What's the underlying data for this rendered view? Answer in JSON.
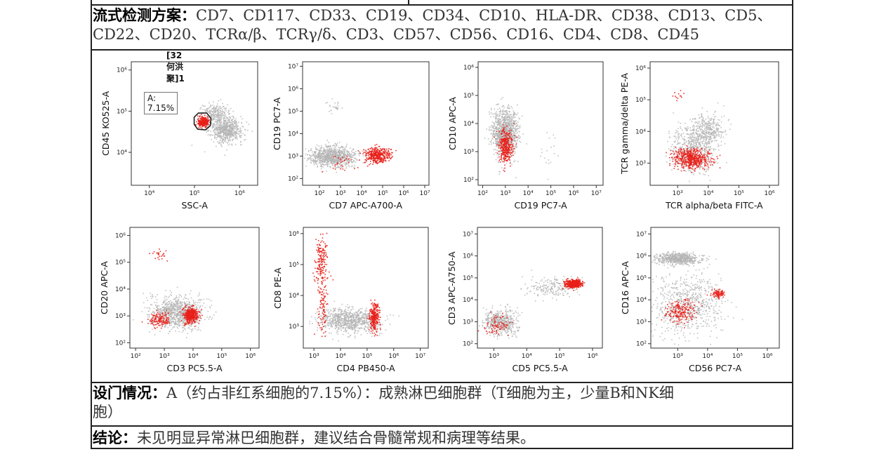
{
  "protocol": {
    "label": "流式检测方案：",
    "markers_line1": "CD7、CD117、CD33、CD19、CD34、CD10、HLA-DR、CD38、CD13、CD5、",
    "markers_line2": "CD22、CD20、TCRα/β、TCRγ/δ、CD3、CD57、CD56、CD16、CD4、CD8、CD45"
  },
  "gating": {
    "label": "设门情况：",
    "text_line1": "A（约占非红系细胞的7.15%）：成熟淋巴细胞群（T细胞为主，少量B和NK细",
    "text_line2": "胞）"
  },
  "conclusion": {
    "label": "结论：",
    "text": "未见明显异常淋巴细胞群，建议结合骨髓常规和病理等结果。"
  },
  "colors": {
    "background_events": "#b4b4b4",
    "gated_events": "#e8201a",
    "gate_outline": "#222222"
  },
  "chart_data": [
    {
      "type": "scatter",
      "title": "[32何洪聚]1",
      "xlabel": "SSC-A",
      "ylabel": "CD45 KO525-A",
      "x_ticks": [
        "10⁴",
        "10⁵",
        "10⁶"
      ],
      "y_ticks": [
        "10⁴",
        "10⁵",
        "10⁶"
      ],
      "xlim_log": [
        3.6,
        6.4
      ],
      "ylim_log": [
        3.2,
        6.2
      ],
      "gate": {
        "name": "A",
        "label": "A: 7.15%"
      },
      "populations": [
        {
          "kind": "gray",
          "x": 5.7,
          "y": 4.55,
          "sx": 0.18,
          "sy": 0.15,
          "n": 650
        },
        {
          "kind": "gray",
          "x": 5.45,
          "y": 4.95,
          "sx": 0.15,
          "sy": 0.12,
          "n": 250
        },
        {
          "kind": "red",
          "x": 5.18,
          "y": 4.75,
          "sx": 0.06,
          "sy": 0.06,
          "n": 260
        }
      ]
    },
    {
      "type": "scatter",
      "xlabel": "CD7 APC-A700-A",
      "ylabel": "CD19 PC7-A",
      "x_ticks": [
        "10²",
        "10³",
        "10⁴",
        "10⁵",
        "10⁶",
        "10⁷"
      ],
      "y_ticks": [
        "10²",
        "10³",
        "10⁴",
        "10⁵",
        "10⁶",
        "10⁷"
      ],
      "xlim_log": [
        1.2,
        7.2
      ],
      "ylim_log": [
        1.7,
        7.2
      ],
      "populations": [
        {
          "kind": "gray",
          "x": 2.6,
          "y": 3.0,
          "sx": 0.55,
          "sy": 0.22,
          "n": 900
        },
        {
          "kind": "red",
          "x": 4.7,
          "y": 3.05,
          "sx": 0.3,
          "sy": 0.18,
          "n": 380
        },
        {
          "kind": "red",
          "x": 3.0,
          "y": 2.7,
          "sx": 0.3,
          "sy": 0.2,
          "n": 30
        },
        {
          "kind": "gray",
          "x": 2.6,
          "y": 5.2,
          "sx": 0.2,
          "sy": 0.15,
          "n": 25
        }
      ]
    },
    {
      "type": "scatter",
      "xlabel": "CD19 PC7-A",
      "ylabel": "CD10 APC-A",
      "x_ticks": [
        "10²",
        "10³",
        "10⁴",
        "10⁵",
        "10⁶",
        "10⁷"
      ],
      "y_ticks": [
        "10²",
        "10³",
        "10⁴",
        "10⁵",
        "10⁶"
      ],
      "xlim_log": [
        1.8,
        7.3
      ],
      "ylim_log": [
        1.8,
        6.2
      ],
      "populations": [
        {
          "kind": "gray",
          "x": 2.95,
          "y": 3.7,
          "sx": 0.28,
          "sy": 0.42,
          "n": 1100
        },
        {
          "kind": "red",
          "x": 3.0,
          "y": 3.2,
          "sx": 0.16,
          "sy": 0.28,
          "n": 340
        },
        {
          "kind": "gray",
          "x": 5.0,
          "y": 3.1,
          "sx": 0.2,
          "sy": 0.4,
          "n": 18
        }
      ]
    },
    {
      "type": "scatter",
      "xlabel": "TCR alpha/beta FITC-A",
      "ylabel": "TCR gamma/delta PE-A",
      "x_ticks": [
        "10³",
        "10⁴",
        "10⁵",
        "10⁶"
      ],
      "y_ticks": [
        "10³",
        "10⁴",
        "10⁵",
        "10⁶"
      ],
      "xlim_log": [
        2.1,
        6.3
      ],
      "ylim_log": [
        2.3,
        6.2
      ],
      "populations": [
        {
          "kind": "gray",
          "x": 3.5,
          "y": 3.5,
          "sx": 0.35,
          "sy": 0.4,
          "n": 550
        },
        {
          "kind": "gray",
          "x": 4.0,
          "y": 4.1,
          "sx": 0.25,
          "sy": 0.25,
          "n": 300
        },
        {
          "kind": "red",
          "x": 3.45,
          "y": 3.15,
          "sx": 0.3,
          "sy": 0.15,
          "n": 520
        },
        {
          "kind": "red",
          "x": 3.0,
          "y": 5.2,
          "sx": 0.1,
          "sy": 0.1,
          "n": 12
        }
      ]
    },
    {
      "type": "scatter",
      "xlabel": "CD3 PC5.5-A",
      "ylabel": "CD20 APC-A",
      "x_ticks": [
        "10²",
        "10³",
        "10⁴",
        "10⁵",
        "10⁶"
      ],
      "y_ticks": [
        "10²",
        "10³",
        "10⁴",
        "10⁵",
        "10⁶"
      ],
      "xlim_log": [
        1.8,
        6.3
      ],
      "ylim_log": [
        1.8,
        6.3
      ],
      "populations": [
        {
          "kind": "gray",
          "x": 3.4,
          "y": 3.15,
          "sx": 0.45,
          "sy": 0.3,
          "n": 900
        },
        {
          "kind": "red",
          "x": 3.9,
          "y": 3.05,
          "sx": 0.12,
          "sy": 0.14,
          "n": 420
        },
        {
          "kind": "red",
          "x": 2.8,
          "y": 2.85,
          "sx": 0.18,
          "sy": 0.14,
          "n": 140
        },
        {
          "kind": "red",
          "x": 2.8,
          "y": 5.3,
          "sx": 0.2,
          "sy": 0.12,
          "n": 25
        }
      ]
    },
    {
      "type": "scatter",
      "xlabel": "CD4 PB450-A",
      "ylabel": "CD8 PE-A",
      "x_ticks": [
        "10³",
        "10⁴",
        "10⁵",
        "10⁶",
        "10⁷"
      ],
      "y_ticks": [
        "10³",
        "10⁴",
        "10⁵",
        "10⁶"
      ],
      "xlim_log": [
        2.6,
        7.3
      ],
      "ylim_log": [
        2.3,
        6.2
      ],
      "populations": [
        {
          "kind": "gray",
          "x": 4.3,
          "y": 3.2,
          "sx": 0.55,
          "sy": 0.2,
          "n": 850
        },
        {
          "kind": "red",
          "x": 5.25,
          "y": 3.3,
          "sx": 0.09,
          "sy": 0.22,
          "n": 260
        },
        {
          "kind": "red",
          "x": 3.25,
          "y": 5.2,
          "sx": 0.12,
          "sy": 0.35,
          "n": 140
        },
        {
          "kind": "red",
          "x": 3.3,
          "y": 3.9,
          "sx": 0.1,
          "sy": 0.7,
          "n": 120
        }
      ]
    },
    {
      "type": "scatter",
      "xlabel": "CD5 PC5.5-A",
      "ylabel": "CD3 APC-A750-A",
      "x_ticks": [
        "10³",
        "10⁴",
        "10⁵",
        "10⁶"
      ],
      "y_ticks": [
        "10²",
        "10³",
        "10⁴",
        "10⁵",
        "10⁶",
        "10⁷"
      ],
      "xlim_log": [
        2.5,
        6.3
      ],
      "ylim_log": [
        1.8,
        7.3
      ],
      "populations": [
        {
          "kind": "gray",
          "x": 3.2,
          "y": 3.0,
          "sx": 0.25,
          "sy": 0.3,
          "n": 500
        },
        {
          "kind": "gray",
          "x": 4.8,
          "y": 4.6,
          "sx": 0.4,
          "sy": 0.25,
          "n": 200
        },
        {
          "kind": "red",
          "x": 5.4,
          "y": 4.75,
          "sx": 0.12,
          "sy": 0.09,
          "n": 480
        },
        {
          "kind": "red",
          "x": 3.05,
          "y": 2.9,
          "sx": 0.2,
          "sy": 0.3,
          "n": 80
        }
      ]
    },
    {
      "type": "scatter",
      "xlabel": "CD56 PC7-A",
      "ylabel": "CD16 APC-A",
      "x_ticks": [
        "10³",
        "10⁴",
        "10⁵",
        "10⁶"
      ],
      "y_ticks": [
        "10²",
        "10³",
        "10⁴",
        "10⁵",
        "10⁶",
        "10⁷"
      ],
      "xlim_log": [
        2.1,
        6.4
      ],
      "ylim_log": [
        1.8,
        7.3
      ],
      "populations": [
        {
          "kind": "gray",
          "x": 3.0,
          "y": 5.9,
          "sx": 0.35,
          "sy": 0.12,
          "n": 650
        },
        {
          "kind": "gray",
          "x": 3.3,
          "y": 3.8,
          "sx": 0.6,
          "sy": 0.7,
          "n": 700
        },
        {
          "kind": "red",
          "x": 3.1,
          "y": 3.5,
          "sx": 0.25,
          "sy": 0.25,
          "n": 200
        },
        {
          "kind": "red",
          "x": 4.35,
          "y": 4.3,
          "sx": 0.12,
          "sy": 0.1,
          "n": 90
        }
      ]
    }
  ]
}
